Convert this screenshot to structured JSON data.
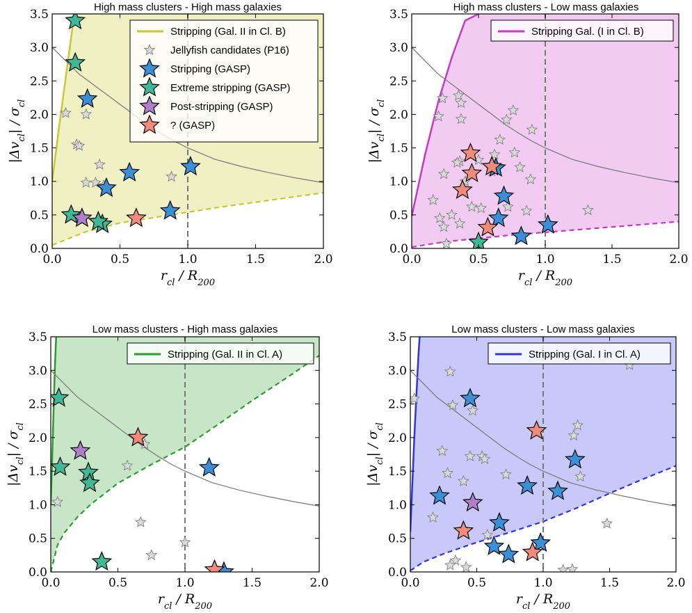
{
  "figure": {
    "xlabel": "r_cl / R_200",
    "ylabel": "|Δv_cl| / σ_cl"
  },
  "chart_data": [
    {
      "type": "scatter",
      "title": "High mass clusters - High mass galaxies",
      "xlim": [
        0,
        2
      ],
      "ylim": [
        0,
        3.5
      ],
      "xticks": [
        "0.0",
        "0.5",
        "1.0",
        "1.5",
        "2.0"
      ],
      "yticks": [
        "0.0",
        "0.5",
        "1.0",
        "1.5",
        "2.0",
        "2.5",
        "3.0",
        "3.5"
      ],
      "region_color": "#d4d45a",
      "region": {
        "upper": [
          [
            0.0,
            1.0
          ],
          [
            0.05,
            1.8
          ],
          [
            0.1,
            2.55
          ],
          [
            0.15,
            3.3
          ],
          [
            0.18,
            3.5
          ]
        ],
        "lower": [
          [
            0.0,
            0.05
          ],
          [
            0.25,
            0.25
          ],
          [
            0.5,
            0.38
          ],
          [
            0.75,
            0.46
          ],
          [
            1.0,
            0.54
          ],
          [
            1.25,
            0.62
          ],
          [
            1.5,
            0.69
          ],
          [
            1.75,
            0.76
          ],
          [
            2.0,
            0.83
          ]
        ]
      },
      "escape_curve": [
        [
          0.0,
          3.0
        ],
        [
          0.1,
          2.8
        ],
        [
          0.2,
          2.6
        ],
        [
          0.3,
          2.45
        ],
        [
          0.4,
          2.3
        ],
        [
          0.5,
          2.15
        ],
        [
          0.6,
          2.0
        ],
        [
          0.7,
          1.85
        ],
        [
          0.8,
          1.72
        ],
        [
          0.9,
          1.6
        ],
        [
          1.0,
          1.5
        ],
        [
          1.2,
          1.33
        ],
        [
          1.4,
          1.22
        ],
        [
          1.6,
          1.13
        ],
        [
          1.8,
          1.05
        ],
        [
          2.0,
          0.98
        ]
      ],
      "vline_x": 1.0,
      "legend": [
        {
          "label": "Stripping (Gal. II in Cl. B)",
          "kind": "line",
          "color": "#c8c832"
        },
        {
          "label": "Jellyfish candidates (P16)",
          "kind": "small-star",
          "color": "#d9d9d9"
        },
        {
          "label": "Stripping (GASP)",
          "kind": "star",
          "color": "#3a8fd6"
        },
        {
          "label": "Extreme stripping (GASP)",
          "kind": "star",
          "color": "#3fb897"
        },
        {
          "label": "Post-stripping (GASP)",
          "kind": "star",
          "color": "#b07fca"
        },
        {
          "label": "? (GASP)",
          "kind": "star",
          "color": "#f08a7b"
        }
      ],
      "legend_position": "top-right",
      "series": {
        "candidates": [
          [
            0.1,
            2.02
          ],
          [
            0.18,
            1.55
          ],
          [
            0.2,
            1.53
          ],
          [
            0.25,
            2.0
          ],
          [
            0.25,
            0.98
          ],
          [
            0.35,
            1.25
          ],
          [
            0.38,
            0.94
          ],
          [
            0.88,
            1.07
          ],
          [
            0.32,
            0.98
          ]
        ],
        "stripping": [
          [
            0.26,
            2.23
          ],
          [
            0.4,
            0.9
          ],
          [
            0.57,
            1.13
          ],
          [
            0.87,
            0.56
          ],
          [
            1.02,
            1.22
          ]
        ],
        "extreme": [
          [
            0.17,
            3.4
          ],
          [
            0.17,
            2.77
          ],
          [
            0.14,
            0.5
          ],
          [
            0.37,
            0.36
          ],
          [
            0.34,
            0.4
          ]
        ],
        "post": [
          [
            0.22,
            0.45
          ]
        ],
        "unknown": [
          [
            0.62,
            0.45
          ]
        ]
      }
    },
    {
      "type": "scatter",
      "title": "High mass clusters - Low mass galaxies",
      "xlim": [
        0,
        2
      ],
      "ylim": [
        0,
        3.5
      ],
      "xticks": [
        "0.0",
        "0.5",
        "1.0",
        "1.5",
        "2.0"
      ],
      "yticks": [
        "0.0",
        "0.5",
        "1.0",
        "1.5",
        "2.0",
        "2.5",
        "3.0",
        "3.5"
      ],
      "region_color": "#d86bd8",
      "region": {
        "upper": [
          [
            0.0,
            0.48
          ],
          [
            0.1,
            1.4
          ],
          [
            0.2,
            2.2
          ],
          [
            0.3,
            2.85
          ],
          [
            0.4,
            3.4
          ],
          [
            0.5,
            3.5
          ]
        ],
        "lower": [
          [
            0.0,
            0.02
          ],
          [
            0.25,
            0.1
          ],
          [
            0.5,
            0.15
          ],
          [
            0.75,
            0.2
          ],
          [
            1.0,
            0.24
          ],
          [
            1.25,
            0.28
          ],
          [
            1.5,
            0.32
          ],
          [
            1.75,
            0.36
          ],
          [
            2.0,
            0.4
          ]
        ]
      },
      "escape_curve": [
        [
          0.0,
          3.0
        ],
        [
          0.1,
          2.8
        ],
        [
          0.2,
          2.6
        ],
        [
          0.3,
          2.45
        ],
        [
          0.4,
          2.3
        ],
        [
          0.5,
          2.15
        ],
        [
          0.6,
          2.0
        ],
        [
          0.7,
          1.85
        ],
        [
          0.8,
          1.72
        ],
        [
          0.9,
          1.6
        ],
        [
          1.0,
          1.5
        ],
        [
          1.2,
          1.33
        ],
        [
          1.4,
          1.22
        ],
        [
          1.6,
          1.13
        ],
        [
          1.8,
          1.05
        ],
        [
          2.0,
          0.98
        ]
      ],
      "vline_x": 1.0,
      "legend": [
        {
          "label": "Stripping Gal. (I in Cl. B)",
          "kind": "line",
          "color": "#c837c8"
        }
      ],
      "legend_position": "top-right",
      "series": {
        "candidates": [
          [
            0.23,
            2.24
          ],
          [
            0.35,
            2.28
          ],
          [
            0.37,
            2.17
          ],
          [
            0.37,
            1.93
          ],
          [
            0.2,
            1.97
          ],
          [
            0.71,
            1.92
          ],
          [
            0.76,
            2.06
          ],
          [
            0.9,
            1.77
          ],
          [
            0.66,
            1.62
          ],
          [
            0.62,
            1.4
          ],
          [
            0.77,
            1.43
          ],
          [
            0.5,
            1.32
          ],
          [
            0.36,
            1.3
          ],
          [
            0.34,
            1.28
          ],
          [
            0.24,
            1.11
          ],
          [
            0.4,
            1.0
          ],
          [
            0.6,
            1.15
          ],
          [
            0.81,
            1.21
          ],
          [
            0.89,
            1.03
          ],
          [
            0.16,
            0.72
          ],
          [
            0.21,
            0.45
          ],
          [
            0.36,
            0.37
          ],
          [
            0.24,
            0.32
          ],
          [
            0.26,
            0.07
          ],
          [
            0.52,
            0.6
          ],
          [
            0.72,
            0.62
          ],
          [
            0.86,
            0.56
          ],
          [
            1.32,
            0.57
          ],
          [
            0.3,
            0.5
          ],
          [
            0.45,
            0.62
          ]
        ],
        "stripping": [
          [
            0.63,
            1.2
          ],
          [
            0.69,
            0.78
          ],
          [
            0.65,
            0.45
          ],
          [
            0.82,
            0.18
          ],
          [
            1.02,
            0.35
          ]
        ],
        "extreme": [
          [
            0.5,
            0.09
          ]
        ],
        "post": [],
        "unknown": [
          [
            0.44,
            1.42
          ],
          [
            0.45,
            1.12
          ],
          [
            0.38,
            0.87
          ],
          [
            0.6,
            1.22
          ],
          [
            0.57,
            0.31
          ]
        ]
      }
    },
    {
      "type": "scatter",
      "title": "Low mass clusters - High mass galaxies",
      "xlim": [
        0,
        2
      ],
      "ylim": [
        0,
        3.5
      ],
      "xticks": [
        "0.0",
        "0.5",
        "1.0",
        "1.5",
        "2.0"
      ],
      "yticks": [
        "0.0",
        "0.5",
        "1.0",
        "1.5",
        "2.0",
        "2.5",
        "3.0",
        "3.5"
      ],
      "region_color": "#5fb85f",
      "region": {
        "upper": [
          [
            0.0,
            1.0
          ],
          [
            0.015,
            2.0
          ],
          [
            0.03,
            3.0
          ],
          [
            0.04,
            3.5
          ]
        ],
        "lower": [
          [
            0.0,
            0.0
          ],
          [
            0.05,
            0.4
          ],
          [
            0.1,
            0.58
          ],
          [
            0.2,
            0.82
          ],
          [
            0.3,
            1.01
          ],
          [
            0.5,
            1.32
          ],
          [
            0.75,
            1.6
          ],
          [
            1.0,
            1.86
          ],
          [
            1.25,
            2.2
          ],
          [
            1.5,
            2.55
          ],
          [
            1.75,
            2.88
          ],
          [
            2.0,
            3.22
          ]
        ]
      },
      "escape_curve": [
        [
          0.0,
          3.0
        ],
        [
          0.1,
          2.8
        ],
        [
          0.2,
          2.6
        ],
        [
          0.3,
          2.45
        ],
        [
          0.4,
          2.3
        ],
        [
          0.5,
          2.15
        ],
        [
          0.6,
          2.0
        ],
        [
          0.7,
          1.85
        ],
        [
          0.8,
          1.72
        ],
        [
          0.9,
          1.6
        ],
        [
          1.0,
          1.5
        ],
        [
          1.2,
          1.33
        ],
        [
          1.4,
          1.22
        ],
        [
          1.6,
          1.13
        ],
        [
          1.8,
          1.05
        ],
        [
          2.0,
          0.98
        ]
      ],
      "vline_x": 1.0,
      "legend": [
        {
          "label": "Stripping (Gal. II in Cl. A)",
          "kind": "line",
          "color": "#2d9a2d"
        }
      ],
      "legend_position": "top-right",
      "series": {
        "candidates": [
          [
            0.05,
            1.04
          ],
          [
            0.57,
            1.58
          ],
          [
            0.7,
            1.9
          ],
          [
            0.67,
            0.74
          ],
          [
            0.75,
            0.25
          ],
          [
            1.0,
            0.44
          ]
        ],
        "stripping": [
          [
            1.18,
            1.55
          ],
          [
            1.29,
            0.0
          ]
        ],
        "extreme": [
          [
            0.06,
            2.59
          ],
          [
            0.07,
            1.56
          ],
          [
            0.28,
            1.48
          ],
          [
            0.29,
            1.32
          ],
          [
            0.38,
            0.15
          ]
        ],
        "post": [
          [
            0.22,
            1.8
          ]
        ],
        "unknown": [
          [
            0.65,
            2.0
          ],
          [
            1.22,
            0.03
          ]
        ]
      }
    },
    {
      "type": "scatter",
      "title": "Low mass clusters - Low mass galaxies",
      "xlim": [
        0,
        2
      ],
      "ylim": [
        0,
        3.5
      ],
      "xticks": [
        "0.0",
        "0.5",
        "1.0",
        "1.5",
        "2.0"
      ],
      "yticks": [
        "0.0",
        "0.5",
        "1.0",
        "1.5",
        "2.0",
        "2.5",
        "3.0",
        "3.5"
      ],
      "region_color": "#6060ee",
      "region": {
        "upper": [
          [
            0.0,
            0.6
          ],
          [
            0.03,
            2.0
          ],
          [
            0.06,
            3.2
          ],
          [
            0.07,
            3.5
          ]
        ],
        "lower": [
          [
            0.0,
            0.02
          ],
          [
            0.1,
            0.15
          ],
          [
            0.25,
            0.27
          ],
          [
            0.5,
            0.44
          ],
          [
            0.75,
            0.59
          ],
          [
            1.0,
            0.75
          ],
          [
            1.25,
            0.95
          ],
          [
            1.5,
            1.17
          ],
          [
            1.75,
            1.38
          ],
          [
            2.0,
            1.58
          ]
        ]
      },
      "escape_curve": [
        [
          0.0,
          3.0
        ],
        [
          0.1,
          2.8
        ],
        [
          0.2,
          2.6
        ],
        [
          0.3,
          2.45
        ],
        [
          0.4,
          2.3
        ],
        [
          0.5,
          2.15
        ],
        [
          0.6,
          2.0
        ],
        [
          0.7,
          1.85
        ],
        [
          0.8,
          1.72
        ],
        [
          0.9,
          1.6
        ],
        [
          1.0,
          1.5
        ],
        [
          1.2,
          1.33
        ],
        [
          1.4,
          1.22
        ],
        [
          1.6,
          1.13
        ],
        [
          1.8,
          1.05
        ],
        [
          2.0,
          0.98
        ]
      ],
      "vline_x": 1.0,
      "legend": [
        {
          "label": "Stripping (Gal. I in Cl. A)",
          "kind": "line",
          "color": "#3333dd"
        }
      ],
      "legend_position": "top-right",
      "series": {
        "candidates": [
          [
            0.03,
            2.58
          ],
          [
            0.3,
            2.98
          ],
          [
            0.32,
            2.48
          ],
          [
            0.47,
            2.4
          ],
          [
            0.24,
            1.8
          ],
          [
            0.45,
            1.72
          ],
          [
            0.54,
            1.72
          ],
          [
            0.56,
            1.68
          ],
          [
            0.28,
            1.47
          ],
          [
            0.4,
            1.35
          ],
          [
            0.17,
            0.81
          ],
          [
            0.34,
            0.17
          ],
          [
            0.3,
            0.1
          ],
          [
            0.42,
            0.07
          ],
          [
            1.23,
            2.03
          ],
          [
            1.26,
            2.18
          ],
          [
            1.28,
            1.42
          ],
          [
            1.65,
            3.08
          ],
          [
            1.48,
            0.72
          ],
          [
            1.15,
            0.03
          ],
          [
            1.22,
            0.04
          ],
          [
            0.72,
            1.45
          ],
          [
            0.58,
            0.55
          ]
        ],
        "stripping": [
          [
            0.45,
            2.58
          ],
          [
            0.22,
            1.13
          ],
          [
            0.88,
            1.28
          ],
          [
            1.11,
            1.2
          ],
          [
            1.24,
            1.67
          ],
          [
            0.67,
            0.73
          ],
          [
            0.63,
            0.38
          ],
          [
            0.74,
            0.26
          ],
          [
            0.98,
            0.43
          ]
        ],
        "extreme": [],
        "post": [
          [
            0.47,
            1.03
          ]
        ],
        "unknown": [
          [
            0.4,
            0.61
          ],
          [
            0.95,
            2.1
          ],
          [
            0.92,
            0.29
          ]
        ]
      }
    }
  ]
}
